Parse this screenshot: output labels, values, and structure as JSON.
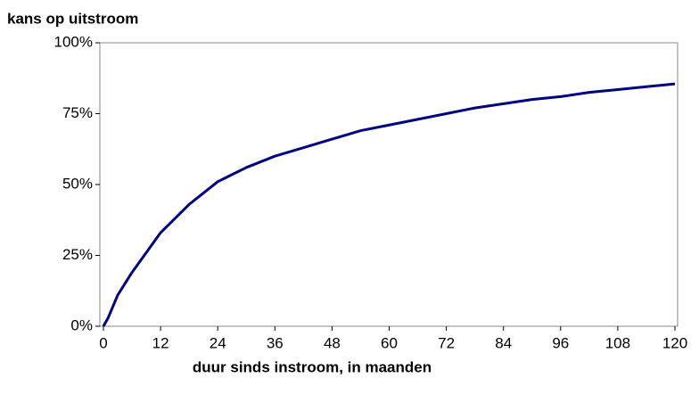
{
  "chart_data": {
    "type": "line",
    "y_label": "kans op uitstroom",
    "x_label": "duur sinds instroom, in maanden",
    "x": [
      0,
      1,
      2,
      3,
      6,
      9,
      12,
      15,
      18,
      21,
      24,
      30,
      36,
      42,
      48,
      54,
      60,
      66,
      72,
      78,
      84,
      90,
      96,
      102,
      108,
      114,
      120
    ],
    "series": [
      {
        "color": "#000080",
        "values": [
          0,
          3,
          7,
          11,
          19,
          26,
          33,
          38,
          43,
          47,
          51,
          56,
          60,
          63,
          66,
          69,
          71,
          73,
          75,
          77,
          78.5,
          80,
          81,
          82.5,
          83.5,
          84.5,
          85.5
        ]
      }
    ],
    "xlim": [
      0,
      120
    ],
    "xticks": [
      0,
      12,
      24,
      36,
      48,
      60,
      72,
      84,
      96,
      108,
      120
    ],
    "ylim": [
      0,
      100
    ],
    "yticks": [
      {
        "value": 0,
        "label": "0%"
      },
      {
        "value": 25,
        "label": "25%"
      },
      {
        "value": 50,
        "label": "50%"
      },
      {
        "value": 75,
        "label": "75%"
      },
      {
        "value": 100,
        "label": "100%"
      }
    ],
    "grid": false
  }
}
